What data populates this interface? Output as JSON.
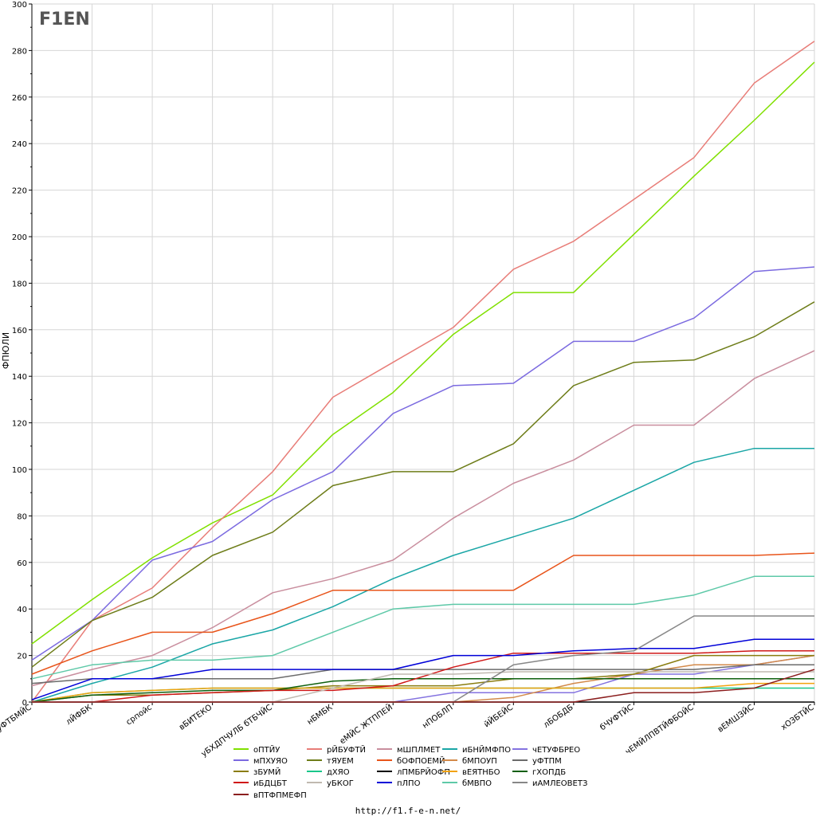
{
  "footer": "http://f1.f-e-n.net/",
  "logo_text": "F1EN",
  "chart_data": {
    "type": "line",
    "ylabel": "ФПЮЛИ",
    "ylim": [
      0,
      300
    ],
    "yticks": [
      0,
      20,
      40,
      60,
      80,
      100,
      120,
      140,
      160,
      180,
      200,
      220,
      240,
      260,
      280,
      300
    ],
    "grid": true,
    "legend_position": "bottom",
    "categories": [
      "уФТБМЙС",
      "лЙФБК",
      "српойс",
      "вБИТЕКО",
      "уБХДПЧУЛБ бТБЧЙС",
      "нБМБК",
      "еМЙС ЖТППЕЙ",
      "нПОБЛП",
      "йЙБЕЙС",
      "лБОБДБ",
      "бЧУФТЙС",
      "чЕМЙЛПВТЙФБОЙС",
      "вЕМШЗЙС",
      "хОЗБТЙС"
    ],
    "series": [
      {
        "name": "оПТЙУ",
        "color": "#80e000",
        "values": [
          25,
          44,
          62,
          77,
          89,
          115,
          133,
          158,
          176,
          176,
          201,
          226,
          250,
          275
        ]
      },
      {
        "name": "рЙБУФТЙ",
        "color": "#e87d78",
        "values": [
          0,
          35,
          49,
          75,
          99,
          131,
          146,
          161,
          186,
          198,
          216,
          234,
          266,
          284
        ]
      },
      {
        "name": "мШПЛМЕТ",
        "color": "#c98e9e",
        "values": [
          7,
          14,
          20,
          32,
          47,
          53,
          61,
          79,
          94,
          104,
          119,
          119,
          139,
          151
        ]
      },
      {
        "name": "иБНЙМФПО",
        "color": "#1aa6a6",
        "values": [
          0,
          8,
          15,
          25,
          31,
          41,
          53,
          63,
          71,
          79,
          91,
          103,
          109,
          109
        ]
      },
      {
        "name": "чЕТУФБРЕО",
        "color": "#8473e0",
        "values": [
          0,
          0,
          0,
          0,
          0,
          0,
          0,
          4,
          4,
          4,
          12,
          12,
          16,
          20
        ]
      },
      {
        "name": "мПХУЯО",
        "color": "#7b6ae0",
        "values": [
          18,
          35,
          61,
          69,
          87,
          99,
          124,
          136,
          137,
          155,
          155,
          165,
          185,
          187
        ]
      },
      {
        "name": "тЯУЕМ",
        "color": "#6e7d19",
        "values": [
          15,
          35,
          45,
          63,
          73,
          93,
          99,
          99,
          111,
          136,
          146,
          147,
          157,
          172
        ]
      },
      {
        "name": "бОФПОЕМЙ",
        "color": "#e8541a",
        "values": [
          12,
          22,
          30,
          30,
          38,
          48,
          48,
          48,
          48,
          63,
          63,
          63,
          63,
          64
        ]
      },
      {
        "name": "бМПОУП",
        "color": "#d38a4a",
        "values": [
          0,
          0,
          0,
          0,
          0,
          0,
          0,
          0,
          2,
          8,
          12,
          16,
          16,
          20
        ]
      },
      {
        "name": "уФТПМ",
        "color": "#6b6b6b",
        "values": [
          8,
          10,
          10,
          10,
          10,
          14,
          14,
          14,
          14,
          14,
          14,
          14,
          16,
          16
        ]
      },
      {
        "name": "зБУМЙ",
        "color": "#8a7d10",
        "values": [
          0,
          3,
          3,
          4,
          5,
          7,
          7,
          7,
          10,
          10,
          12,
          20,
          20,
          20
        ]
      },
      {
        "name": "дХЯО",
        "color": "#19c78a",
        "values": [
          0,
          4,
          5,
          6,
          6,
          6,
          6,
          6,
          6,
          6,
          6,
          6,
          6,
          6
        ]
      },
      {
        "name": "лПМБРЙОФП",
        "color": "#000000",
        "values": [
          0,
          0,
          0,
          0,
          0,
          0,
          0,
          0,
          0,
          0,
          0,
          0,
          0,
          0
        ]
      },
      {
        "name": "вЕЯТНБО",
        "color": "#f2a20e",
        "values": [
          0,
          4,
          5,
          6,
          6,
          6,
          6,
          6,
          6,
          6,
          6,
          6,
          8,
          8
        ]
      },
      {
        "name": "гХОПДБ",
        "color": "#0e5f0e",
        "values": [
          0,
          3,
          4,
          5,
          5,
          9,
          10,
          10,
          10,
          10,
          10,
          10,
          10,
          10
        ]
      },
      {
        "name": "иБДЦБТ",
        "color": "#d01818",
        "values": [
          0,
          0,
          3,
          4,
          5,
          5,
          7,
          15,
          21,
          21,
          21,
          21,
          22,
          22
        ]
      },
      {
        "name": "уБКОГ",
        "color": "#c0b9b0",
        "values": [
          0,
          0,
          0,
          0,
          0,
          6,
          12,
          12,
          13,
          13,
          13,
          13,
          13,
          13
        ]
      },
      {
        "name": "пЛПО",
        "color": "#0000d8",
        "values": [
          1,
          10,
          10,
          14,
          14,
          14,
          14,
          20,
          20,
          22,
          23,
          23,
          27,
          27
        ]
      },
      {
        "name": "бМВПО",
        "color": "#5ec9a8",
        "values": [
          10,
          16,
          18,
          18,
          20,
          30,
          40,
          42,
          42,
          42,
          42,
          46,
          54,
          54
        ]
      },
      {
        "name": "иАМЛЕОВЕТЗ",
        "color": "#878787",
        "values": [
          0,
          0,
          0,
          0,
          0,
          0,
          0,
          0,
          16,
          20,
          22,
          37,
          37,
          37
        ]
      },
      {
        "name": "вПТФПМЕФП",
        "color": "#8b1e1e",
        "values": [
          0,
          0,
          0,
          0,
          0,
          0,
          0,
          0,
          0,
          0,
          4,
          4,
          6,
          14
        ]
      }
    ]
  }
}
